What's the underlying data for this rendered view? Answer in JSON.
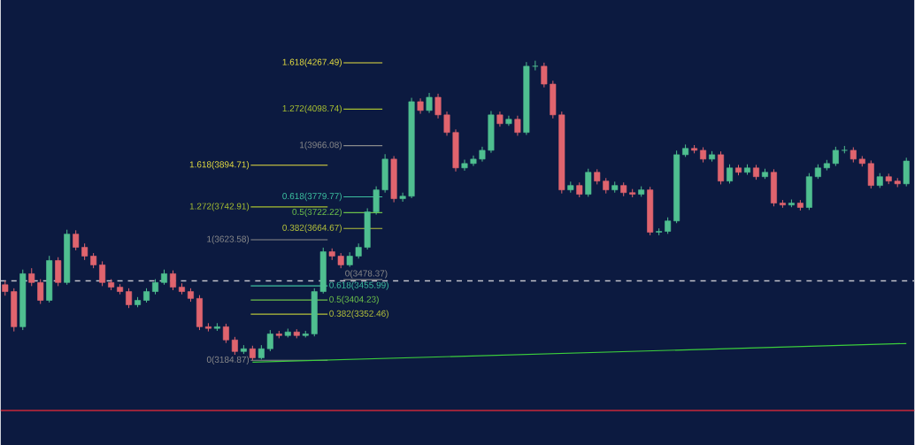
{
  "chart_data": {
    "type": "candlestick",
    "categories": [
      null,
      null,
      null,
      null,
      null,
      null,
      null,
      null,
      null,
      null,
      null,
      null,
      null,
      null,
      null,
      null,
      null,
      null,
      null,
      null,
      null,
      null,
      null,
      null,
      null,
      null,
      null,
      null,
      null,
      null,
      null,
      null,
      null,
      null,
      null,
      null,
      null,
      null,
      null,
      null,
      null,
      null,
      null,
      null,
      null,
      null,
      null,
      null,
      null,
      null,
      null,
      null,
      null,
      null,
      null,
      null,
      null,
      null,
      null,
      null,
      null,
      null,
      null,
      null,
      null,
      null,
      null,
      null,
      null,
      null,
      null,
      null,
      null,
      null,
      null,
      null,
      null,
      null,
      null,
      null,
      null,
      null,
      null,
      null,
      null,
      null,
      null,
      null,
      null,
      null,
      null,
      null,
      null,
      null,
      null,
      null,
      null,
      null,
      null,
      null,
      null,
      null,
      null
    ],
    "ohlc": [
      [
        3460,
        3475,
        3420,
        3435
      ],
      [
        3435,
        3447,
        3290,
        3307
      ],
      [
        3307,
        3515,
        3295,
        3500
      ],
      [
        3500,
        3520,
        3455,
        3468
      ],
      [
        3468,
        3480,
        3390,
        3403
      ],
      [
        3403,
        3565,
        3395,
        3548
      ],
      [
        3548,
        3560,
        3455,
        3468
      ],
      [
        3468,
        3660,
        3460,
        3644
      ],
      [
        3644,
        3658,
        3585,
        3596
      ],
      [
        3596,
        3610,
        3550,
        3564
      ],
      [
        3564,
        3575,
        3520,
        3532
      ],
      [
        3532,
        3545,
        3455,
        3468
      ],
      [
        3468,
        3480,
        3440,
        3451
      ],
      [
        3451,
        3462,
        3425,
        3435
      ],
      [
        3435,
        3447,
        3375,
        3387
      ],
      [
        3387,
        3415,
        3378,
        3403
      ],
      [
        3403,
        3447,
        3395,
        3435
      ],
      [
        3435,
        3480,
        3425,
        3468
      ],
      [
        3468,
        3515,
        3460,
        3500
      ],
      [
        3500,
        3512,
        3440,
        3451
      ],
      [
        3451,
        3465,
        3425,
        3435
      ],
      [
        3435,
        3447,
        3398,
        3410
      ],
      [
        3410,
        3422,
        3295,
        3307
      ],
      [
        3307,
        3320,
        3290,
        3301
      ],
      [
        3301,
        3320,
        3292,
        3307
      ],
      [
        3307,
        3318,
        3248,
        3259
      ],
      [
        3259,
        3270,
        3205,
        3217
      ],
      [
        3217,
        3240,
        3208,
        3227
      ],
      [
        3227,
        3238,
        3185,
        3194
      ],
      [
        3194,
        3240,
        3188,
        3227
      ],
      [
        3227,
        3295,
        3218,
        3281
      ],
      [
        3281,
        3292,
        3265,
        3275
      ],
      [
        3275,
        3300,
        3268,
        3288
      ],
      [
        3288,
        3298,
        3265,
        3275
      ],
      [
        3275,
        3292,
        3268,
        3281
      ],
      [
        3281,
        3447,
        3272,
        3435
      ],
      [
        3435,
        3595,
        3428,
        3580
      ],
      [
        3580,
        3592,
        3550,
        3564
      ],
      [
        3564,
        3575,
        3520,
        3532
      ],
      [
        3532,
        3578,
        3525,
        3564
      ],
      [
        3564,
        3610,
        3555,
        3596
      ],
      [
        3596,
        3738,
        3588,
        3725
      ],
      [
        3725,
        3818,
        3715,
        3805
      ],
      [
        3805,
        3935,
        3795,
        3917
      ],
      [
        3917,
        3928,
        3760,
        3773
      ],
      [
        3773,
        3795,
        3762,
        3782
      ],
      [
        3782,
        4140,
        3775,
        4126
      ],
      [
        4126,
        4138,
        4082,
        4094
      ],
      [
        4094,
        4158,
        4085,
        4142
      ],
      [
        4142,
        4155,
        4065,
        4078
      ],
      [
        4078,
        4090,
        4002,
        4014
      ],
      [
        4014,
        4025,
        3872,
        3885
      ],
      [
        3885,
        3915,
        3875,
        3901
      ],
      [
        3901,
        3930,
        3892,
        3917
      ],
      [
        3917,
        3962,
        3908,
        3949
      ],
      [
        3949,
        4092,
        3940,
        4078
      ],
      [
        4078,
        4090,
        4035,
        4046
      ],
      [
        4046,
        4075,
        4038,
        4062
      ],
      [
        4062,
        4075,
        4002,
        4014
      ],
      [
        4014,
        4270,
        4005,
        4255
      ],
      [
        4255,
        4275,
        4240,
        4255
      ],
      [
        4255,
        4268,
        4178,
        4190
      ],
      [
        4190,
        4202,
        4065,
        4078
      ],
      [
        4078,
        4090,
        3792,
        3805
      ],
      [
        3805,
        3835,
        3795,
        3821
      ],
      [
        3821,
        3832,
        3778,
        3789
      ],
      [
        3789,
        3882,
        3780,
        3869
      ],
      [
        3869,
        3880,
        3825,
        3837
      ],
      [
        3837,
        3848,
        3792,
        3805
      ],
      [
        3805,
        3835,
        3795,
        3821
      ],
      [
        3821,
        3832,
        3782,
        3795
      ],
      [
        3795,
        3808,
        3778,
        3789
      ],
      [
        3789,
        3818,
        3780,
        3805
      ],
      [
        3805,
        3816,
        3640,
        3651
      ],
      [
        3651,
        3665,
        3640,
        3654
      ],
      [
        3654,
        3705,
        3645,
        3692
      ],
      [
        3692,
        3948,
        3684,
        3933
      ],
      [
        3933,
        3970,
        3925,
        3956
      ],
      [
        3956,
        3968,
        3938,
        3949
      ],
      [
        3949,
        3960,
        3905,
        3917
      ],
      [
        3917,
        3946,
        3908,
        3933
      ],
      [
        3933,
        3945,
        3825,
        3837
      ],
      [
        3837,
        3898,
        3828,
        3885
      ],
      [
        3885,
        3896,
        3858,
        3869
      ],
      [
        3869,
        3898,
        3860,
        3885
      ],
      [
        3885,
        3896,
        3842,
        3853
      ],
      [
        3853,
        3882,
        3845,
        3869
      ],
      [
        3869,
        3880,
        3745,
        3757
      ],
      [
        3757,
        3768,
        3740,
        3750
      ],
      [
        3750,
        3770,
        3742,
        3757
      ],
      [
        3757,
        3768,
        3730,
        3741
      ],
      [
        3741,
        3866,
        3732,
        3853
      ],
      [
        3853,
        3898,
        3845,
        3885
      ],
      [
        3885,
        3914,
        3876,
        3901
      ],
      [
        3901,
        3962,
        3892,
        3949
      ],
      [
        3949,
        3965,
        3938,
        3949
      ],
      [
        3949,
        3960,
        3905,
        3917
      ],
      [
        3917,
        3928,
        3890,
        3901
      ],
      [
        3901,
        3912,
        3810,
        3821
      ],
      [
        3821,
        3866,
        3812,
        3853
      ],
      [
        3853,
        3864,
        3826,
        3837
      ],
      [
        3837,
        3848,
        3815,
        3827
      ],
      [
        3827,
        3922,
        3818,
        3910
      ]
    ],
    "series": [
      {
        "type": "line",
        "color": "#3ccf3c",
        "values": [
          null,
          null,
          null,
          null,
          null,
          null,
          null,
          null,
          null,
          null,
          null,
          null,
          null,
          null,
          null,
          null,
          null,
          null,
          null,
          null,
          null,
          null,
          null,
          null,
          null,
          null,
          null,
          null,
          3178,
          null,
          null,
          null,
          null,
          null,
          null,
          null,
          null,
          null,
          null,
          null,
          null,
          null,
          null,
          null,
          null,
          null,
          null,
          null,
          null,
          null,
          null,
          null,
          null,
          null,
          null,
          null,
          null,
          null,
          null,
          null,
          null,
          null,
          null,
          null,
          null,
          null,
          null,
          null,
          null,
          null,
          null,
          null,
          null,
          null,
          null,
          null,
          null,
          null,
          null,
          null,
          null,
          null,
          null,
          null,
          null,
          null,
          null,
          null,
          null,
          null,
          null,
          null,
          null,
          null,
          null,
          null,
          null,
          null,
          null,
          null,
          null,
          null,
          3246
        ]
      }
    ],
    "ylim": [
      2876,
      4496
    ],
    "tick_labels": false,
    "ref_lines": [
      {
        "axis": "y",
        "value": 3474,
        "color": "#c8c8d0",
        "line_style": "dashed"
      },
      {
        "axis": "y",
        "value": 3002,
        "color": "#c8283a"
      },
      {
        "axis": "y",
        "value": 3184.87,
        "label": "0(3184.87)",
        "color": "#8a8a8a"
      },
      {
        "axis": "y",
        "value": 3352.46,
        "label": "0.382(3352.46)",
        "color": "#b5c23a"
      },
      {
        "axis": "y",
        "value": 3404.23,
        "label": "0.5(3404.23)",
        "color": "#6cc04a"
      },
      {
        "axis": "y",
        "value": 3455.99,
        "label": "0.618(3455.99)",
        "color": "#3cc0a0"
      },
      {
        "axis": "y",
        "value": 3623.58,
        "label": "1(3623.58)",
        "color": "#8a8a8a"
      },
      {
        "axis": "y",
        "value": 3742.91,
        "label": "1.272(3742.91)",
        "color": "#a8c030"
      },
      {
        "axis": "y",
        "value": 3894.71,
        "label": "1.618(3894.71)",
        "color": "#e8e040"
      },
      {
        "axis": "y",
        "value": 3478.37,
        "label": "0(3478.37)",
        "color": "#8a8a8a"
      },
      {
        "axis": "y",
        "value": 3664.67,
        "label": "0.382(3664.67)",
        "color": "#b5c23a"
      },
      {
        "axis": "y",
        "value": 3722.22,
        "label": "0.5(3722.22)",
        "color": "#6cc04a"
      },
      {
        "axis": "y",
        "value": 3779.77,
        "label": "0.618(3779.77)",
        "color": "#3cc0a0"
      },
      {
        "axis": "y",
        "value": 3966.08,
        "label": "1(3966.08)",
        "color": "#8a8a8a"
      },
      {
        "axis": "y",
        "value": 4098.74,
        "label": "1.272(4098.74)",
        "color": "#a8c030"
      },
      {
        "axis": "y",
        "value": 4267.49,
        "label": "1.618(4267.49)",
        "color": "#e8e040"
      }
    ]
  }
}
